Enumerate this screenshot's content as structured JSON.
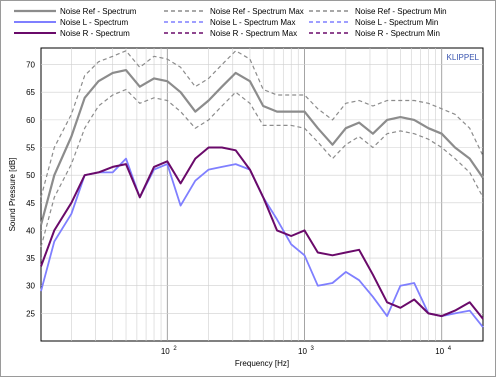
{
  "chart_data": {
    "type": "line",
    "title": "",
    "xlabel": "Frequency [Hz]",
    "ylabel": "Sound Pressure [dB]",
    "watermark": "KLIPPEL",
    "x_scale": "log",
    "xlim": [
      12,
      20000
    ],
    "ylim": [
      20,
      73
    ],
    "grid": true,
    "legend_position": "top",
    "x_tick_labels": [
      {
        "value": 100,
        "base": "10",
        "exp": "2"
      },
      {
        "value": 1000,
        "base": "10",
        "exp": "3"
      },
      {
        "value": 10000,
        "base": "10",
        "exp": "4"
      }
    ],
    "y_ticks": [
      25,
      30,
      35,
      40,
      45,
      50,
      55,
      60,
      65,
      70
    ],
    "series": [
      {
        "name": "Noise Ref - Spectrum",
        "color": "#8c8c8c",
        "style": "solid",
        "width": 2.2,
        "points": [
          [
            12,
            41
          ],
          [
            15,
            50
          ],
          [
            20,
            57
          ],
          [
            25,
            64
          ],
          [
            31.5,
            67
          ],
          [
            40,
            68.5
          ],
          [
            50,
            69
          ],
          [
            63,
            66
          ],
          [
            80,
            67.5
          ],
          [
            100,
            67
          ],
          [
            125,
            65
          ],
          [
            160,
            61.5
          ],
          [
            200,
            63.5
          ],
          [
            250,
            66
          ],
          [
            315,
            68.5
          ],
          [
            400,
            67
          ],
          [
            500,
            62.5
          ],
          [
            630,
            61.5
          ],
          [
            800,
            61.5
          ],
          [
            1000,
            61.5
          ],
          [
            1250,
            58.5
          ],
          [
            1600,
            55.5
          ],
          [
            2000,
            58.5
          ],
          [
            2500,
            59.5
          ],
          [
            3150,
            57.5
          ],
          [
            4000,
            60
          ],
          [
            5000,
            60.5
          ],
          [
            6300,
            60
          ],
          [
            8000,
            58.5
          ],
          [
            10000,
            57.5
          ],
          [
            12500,
            55
          ],
          [
            16000,
            53
          ],
          [
            20000,
            49.5
          ]
        ]
      },
      {
        "name": "Noise Ref - Spectrum Max",
        "color": "#8c8c8c",
        "style": "dash",
        "width": 1.2,
        "points": [
          [
            12,
            46
          ],
          [
            15,
            55
          ],
          [
            20,
            61
          ],
          [
            25,
            68
          ],
          [
            31.5,
            70.5
          ],
          [
            40,
            71.5
          ],
          [
            50,
            72.5
          ],
          [
            63,
            69.5
          ],
          [
            80,
            71.5
          ],
          [
            100,
            71
          ],
          [
            125,
            69.5
          ],
          [
            160,
            66
          ],
          [
            200,
            67.5
          ],
          [
            250,
            70
          ],
          [
            315,
            72.5
          ],
          [
            400,
            71
          ],
          [
            500,
            65.5
          ],
          [
            630,
            64.5
          ],
          [
            800,
            64.5
          ],
          [
            1000,
            64.5
          ],
          [
            1250,
            62
          ],
          [
            1600,
            60
          ],
          [
            2000,
            63
          ],
          [
            2500,
            63.5
          ],
          [
            3150,
            62.5
          ],
          [
            4000,
            63.5
          ],
          [
            5000,
            63.5
          ],
          [
            6300,
            63.5
          ],
          [
            8000,
            63
          ],
          [
            10000,
            62
          ],
          [
            12500,
            61
          ],
          [
            16000,
            58.5
          ],
          [
            20000,
            53.5
          ]
        ]
      },
      {
        "name": "Noise Ref - Spectrum Min",
        "color": "#8c8c8c",
        "style": "dash",
        "width": 1.2,
        "points": [
          [
            12,
            37
          ],
          [
            15,
            46
          ],
          [
            20,
            52
          ],
          [
            25,
            58.5
          ],
          [
            31.5,
            62.5
          ],
          [
            40,
            64.5
          ],
          [
            50,
            65.5
          ],
          [
            63,
            63
          ],
          [
            80,
            64
          ],
          [
            100,
            63.5
          ],
          [
            125,
            61.5
          ],
          [
            160,
            58.5
          ],
          [
            200,
            60
          ],
          [
            250,
            62.5
          ],
          [
            315,
            65
          ],
          [
            400,
            63
          ],
          [
            500,
            59
          ],
          [
            630,
            59
          ],
          [
            800,
            59
          ],
          [
            1000,
            58.5
          ],
          [
            1250,
            56
          ],
          [
            1600,
            53
          ],
          [
            2000,
            55.5
          ],
          [
            2500,
            57
          ],
          [
            3150,
            55
          ],
          [
            4000,
            57.5
          ],
          [
            5000,
            58
          ],
          [
            6300,
            57.5
          ],
          [
            8000,
            56.5
          ],
          [
            10000,
            55
          ],
          [
            12500,
            53
          ],
          [
            16000,
            50.5
          ],
          [
            20000,
            46
          ]
        ]
      },
      {
        "name": "Noise L - Spectrum",
        "color": "#7f7fff",
        "style": "solid",
        "width": 1.8,
        "points": [
          [
            12,
            29
          ],
          [
            15,
            38
          ],
          [
            20,
            43
          ],
          [
            25,
            50
          ],
          [
            31.5,
            50.5
          ],
          [
            40,
            50.5
          ],
          [
            50,
            53
          ],
          [
            63,
            46
          ],
          [
            80,
            51
          ],
          [
            100,
            52
          ],
          [
            125,
            44.5
          ],
          [
            160,
            49
          ],
          [
            200,
            51
          ],
          [
            250,
            51.5
          ],
          [
            315,
            52
          ],
          [
            400,
            51
          ],
          [
            500,
            46
          ],
          [
            630,
            42
          ],
          [
            800,
            37.5
          ],
          [
            1000,
            35.5
          ],
          [
            1250,
            30
          ],
          [
            1600,
            30.5
          ],
          [
            2000,
            32.5
          ],
          [
            2500,
            31
          ],
          [
            3150,
            28
          ],
          [
            4000,
            24.5
          ],
          [
            5000,
            30
          ],
          [
            6300,
            30.5
          ],
          [
            8000,
            25
          ],
          [
            10000,
            24.5
          ],
          [
            12500,
            25
          ],
          [
            16000,
            25.5
          ],
          [
            20000,
            22.5
          ]
        ]
      },
      {
        "name": "Noise L - Spectrum Max",
        "color": "#7f7fff",
        "style": "dash",
        "width": 1.2,
        "points": []
      },
      {
        "name": "Noise L - Spectrum Min",
        "color": "#7f7fff",
        "style": "dash",
        "width": 1.2,
        "points": []
      },
      {
        "name": "Noise R - Spectrum",
        "color": "#6a0a6a",
        "style": "solid",
        "width": 2,
        "points": [
          [
            12,
            33.5
          ],
          [
            15,
            40
          ],
          [
            20,
            45
          ],
          [
            25,
            50
          ],
          [
            31.5,
            50.5
          ],
          [
            40,
            51.5
          ],
          [
            50,
            52
          ],
          [
            63,
            46
          ],
          [
            80,
            51.5
          ],
          [
            100,
            52.5
          ],
          [
            125,
            48.5
          ],
          [
            160,
            53
          ],
          [
            200,
            55
          ],
          [
            250,
            55
          ],
          [
            315,
            54.5
          ],
          [
            400,
            51
          ],
          [
            500,
            46
          ],
          [
            630,
            40
          ],
          [
            800,
            39
          ],
          [
            1000,
            40
          ],
          [
            1250,
            36
          ],
          [
            1600,
            35.5
          ],
          [
            2000,
            36
          ],
          [
            2500,
            36.5
          ],
          [
            3150,
            32
          ],
          [
            4000,
            27
          ],
          [
            5000,
            26
          ],
          [
            6300,
            27.5
          ],
          [
            8000,
            25
          ],
          [
            10000,
            24.5
          ],
          [
            12500,
            25.5
          ],
          [
            16000,
            27
          ],
          [
            20000,
            24
          ]
        ]
      },
      {
        "name": "Noise R - Spectrum Max",
        "color": "#6a0a6a",
        "style": "dash",
        "width": 1.2,
        "points": []
      },
      {
        "name": "Noise R - Spectrum Min",
        "color": "#6a0a6a",
        "style": "dash",
        "width": 1.2,
        "points": []
      }
    ]
  }
}
